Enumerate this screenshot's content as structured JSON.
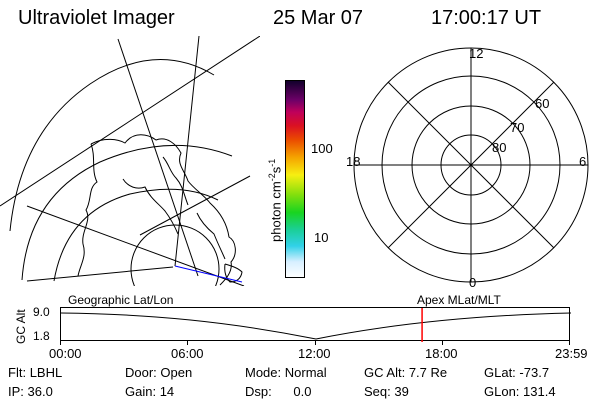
{
  "header": {
    "title": "Ultraviolet Imager",
    "date": "25 Mar 07",
    "time": "17:00:17 UT"
  },
  "colorbar": {
    "label": "photon cm",
    "label_exp1": "-2",
    "label_s": "s",
    "label_exp2": "-1",
    "tick_100": "100",
    "tick_10": "10"
  },
  "polar_plot": {
    "mlt_12": "12",
    "mlt_18": "18",
    "mlt_6": "6",
    "mlt_0": "0",
    "lat_60": "60",
    "lat_70": "70",
    "lat_80": "80"
  },
  "timeline": {
    "left_title": "Geographic Lat/Lon",
    "right_title": "Apex MLat/MLT",
    "ylabel": "GC Alt",
    "y_top": "9.0",
    "y_bottom": "1.8",
    "ticks": [
      "00:00",
      "06:00",
      "12:00",
      "18:00",
      "23:59"
    ],
    "marker_time_fraction": 0.708
  },
  "footer": {
    "left": {
      "filter_label": "Flt:",
      "filter_value": "LBHL",
      "ip_label": "IP:",
      "ip_value": "36.0"
    },
    "door": {
      "door_label": "Door:",
      "door_value": "Open",
      "gain_label": "Gain:",
      "gain_value": "14"
    },
    "mode": {
      "mode_label": "Mode:",
      "mode_value": "Normal",
      "dsp_label": "Dsp:",
      "dsp_value": "0.0"
    },
    "alt": {
      "gc_alt_label": "GC Alt:",
      "gc_alt_value": "7.7 Re",
      "seq_label": "Seq:",
      "seq_value": "39"
    },
    "geo": {
      "glat_label": "GLat:",
      "glat_value": "-73.7",
      "glon_label": "GLon:",
      "glon_value": "131.4"
    }
  },
  "colors": {
    "marker": "#ff0000",
    "blue_line": "#0000ff"
  }
}
